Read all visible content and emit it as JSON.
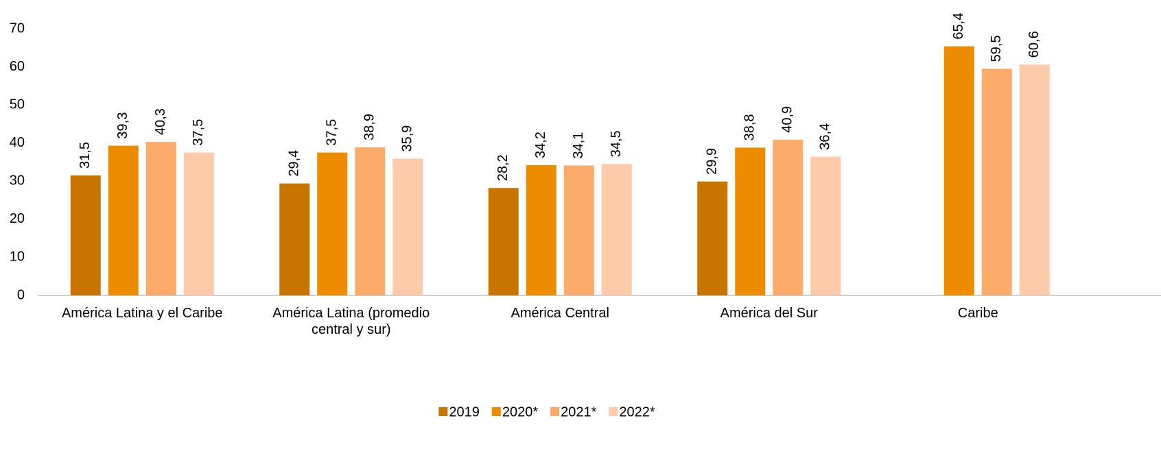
{
  "chart_data": {
    "type": "bar",
    "categories": [
      "América Latina y el Caribe",
      "América Latina (promedio central y sur)",
      "América Central",
      "América del Sur",
      "Caribe"
    ],
    "series": [
      {
        "name": "2019",
        "color": "#c87500",
        "values": [
          31.5,
          29.4,
          28.2,
          29.9,
          null
        ],
        "value_labels": [
          "31,5",
          "29,4",
          "28,2",
          "29,9",
          null
        ]
      },
      {
        "name": "2020*",
        "color": "#ee8c00",
        "values": [
          39.3,
          37.5,
          34.2,
          38.8,
          65.4
        ],
        "value_labels": [
          "39,3",
          "37,5",
          "34,2",
          "38,8",
          "65,4"
        ]
      },
      {
        "name": "2021*",
        "color": "#fcab6b",
        "values": [
          40.3,
          38.9,
          34.1,
          40.9,
          59.5
        ],
        "value_labels": [
          "40,3",
          "38,9",
          "34,1",
          "40,9",
          "59,5"
        ]
      },
      {
        "name": "2022*",
        "color": "#fecbaa",
        "values": [
          37.5,
          35.9,
          34.5,
          36.4,
          60.6
        ],
        "value_labels": [
          "37,5",
          "35,9",
          "34,5",
          "36,4",
          "60,6"
        ]
      }
    ],
    "ylim": [
      0,
      70
    ],
    "yticks": [
      0,
      10,
      20,
      30,
      40,
      50,
      60,
      70
    ],
    "grid": false,
    "legend": "bottom"
  }
}
